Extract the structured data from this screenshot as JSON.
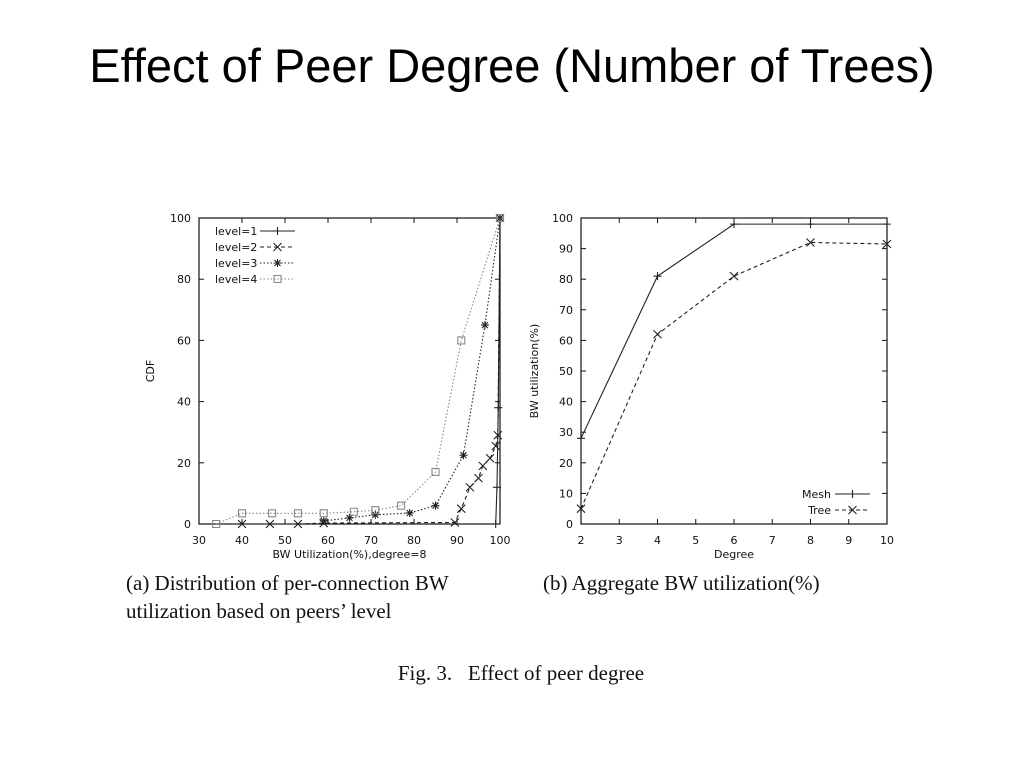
{
  "title": "Effect of Peer Degree (Number of Trees)",
  "captions": {
    "a": [
      "(a) Distribution of per-connection BW",
      "utilization based on peers’ level"
    ],
    "b": "(b) Aggregate BW utilization(%)",
    "figure": "Fig. 3.   Effect of peer degree"
  },
  "chart_data": [
    {
      "type": "line",
      "x_label": "BW Utilization(%),degree=8",
      "y_label": "CDF",
      "xlim": [
        30,
        100
      ],
      "xticks": [
        30,
        40,
        50,
        60,
        70,
        80,
        90,
        100
      ],
      "ylim": [
        0,
        100
      ],
      "yticks": [
        0,
        20,
        40,
        60,
        80,
        100
      ],
      "legend": "top-left",
      "series": [
        {
          "name": "level=1",
          "color": "#222222",
          "dash": "solid",
          "marker": "plus",
          "x": [
            99,
            99.3,
            99.6,
            100
          ],
          "values": [
            0,
            12,
            38,
            100
          ]
        },
        {
          "name": "level=2",
          "color": "#222222",
          "dash": "dashed",
          "marker": "cross",
          "x": [
            40,
            46.5,
            53,
            59,
            89.5,
            91,
            93,
            95,
            96,
            97.7,
            99,
            99.5,
            100
          ],
          "values": [
            0,
            0,
            0,
            0.3,
            0.5,
            5,
            12,
            15,
            19,
            21.5,
            25.5,
            29,
            100
          ]
        },
        {
          "name": "level=3",
          "color": "#222222",
          "dash": "dotted",
          "marker": "star",
          "x": [
            59,
            65,
            71,
            79,
            85,
            91.5,
            96.5,
            100
          ],
          "values": [
            1,
            2,
            3,
            3.6,
            6,
            22.5,
            65,
            100
          ]
        },
        {
          "name": "level=4",
          "color": "#888888",
          "dash": "dotted",
          "marker": "square",
          "x": [
            34,
            40,
            47,
            53,
            59,
            66,
            71,
            77,
            85,
            91,
            100
          ],
          "values": [
            0,
            3.5,
            3.5,
            3.5,
            3.5,
            4,
            4.5,
            6,
            17,
            60,
            100
          ]
        }
      ]
    },
    {
      "type": "line",
      "x_label": "Degree",
      "y_label": "BW utilization(%)",
      "xlim": [
        2,
        10
      ],
      "xticks": [
        2,
        3,
        4,
        5,
        6,
        7,
        8,
        9,
        10
      ],
      "ylim": [
        0,
        100
      ],
      "yticks": [
        0,
        10,
        20,
        30,
        40,
        50,
        60,
        70,
        80,
        90,
        100
      ],
      "legend": "bottom-right",
      "series": [
        {
          "name": "Mesh",
          "color": "#222222",
          "dash": "solid",
          "marker": "plus",
          "x": [
            2,
            4,
            6,
            8,
            10
          ],
          "values": [
            28,
            81,
            98,
            98,
            98
          ]
        },
        {
          "name": "Tree",
          "color": "#222222",
          "dash": "dashed",
          "marker": "cross",
          "x": [
            2,
            4,
            6,
            8,
            10
          ],
          "values": [
            5,
            62,
            81,
            92,
            91.5
          ]
        }
      ]
    }
  ]
}
